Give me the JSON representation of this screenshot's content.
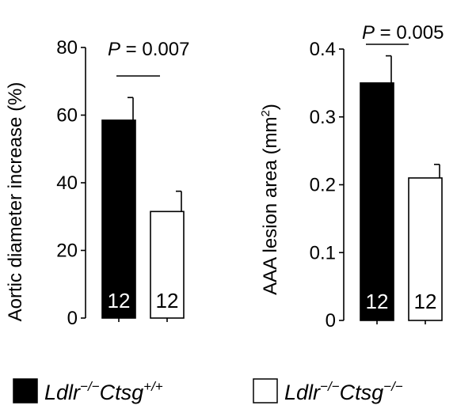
{
  "chart_data": [
    {
      "type": "bar",
      "ylabel": "Aortic diameter increase (%)",
      "ylim": [
        0,
        80
      ],
      "yticks": [
        "0",
        "20",
        "40",
        "60",
        "80"
      ],
      "ytick_values": [
        0,
        20,
        40,
        60,
        80
      ],
      "categories": [
        "Ldlr−/−Ctsg+/+",
        "Ldlr−/−Ctsg−/−"
      ],
      "values": [
        58.5,
        31.5
      ],
      "errors": [
        6.7,
        6.0
      ],
      "n_labels": [
        "12",
        "12"
      ],
      "bar_colors": [
        "#000000",
        "#ffffff"
      ],
      "label_colors": [
        "#ffffff",
        "#000000"
      ],
      "pvalue": {
        "prefix": "P",
        "text": " = 0.007"
      }
    },
    {
      "type": "bar",
      "ylabel_main": "AAA lesion area (mm",
      "ylabel_sup": "2",
      "ylabel_end": ")",
      "ylim": [
        0,
        0.4
      ],
      "yticks": [
        "0",
        "0.1",
        "0.2",
        "0.3",
        "0.4"
      ],
      "ytick_values": [
        0,
        0.1,
        0.2,
        0.3,
        0.4
      ],
      "categories": [
        "Ldlr−/−Ctsg+/+",
        "Ldlr−/−Ctsg−/−"
      ],
      "values": [
        0.35,
        0.21
      ],
      "errors": [
        0.04,
        0.02
      ],
      "n_labels": [
        "12",
        "12"
      ],
      "bar_colors": [
        "#000000",
        "#ffffff"
      ],
      "label_colors": [
        "#ffffff",
        "#000000"
      ],
      "pvalue": {
        "prefix": "P",
        "text": " = 0.005"
      }
    }
  ],
  "legend": {
    "placement": "bottom",
    "items": [
      {
        "gene1": "Ldlr",
        "sup1": "−/−",
        "gene2": "Ctsg",
        "sup2": "+/+",
        "color": "#000000"
      },
      {
        "gene1": "Ldlr",
        "sup1": "−/−",
        "gene2": "Ctsg",
        "sup2": "−/−",
        "color": "#ffffff"
      }
    ]
  }
}
